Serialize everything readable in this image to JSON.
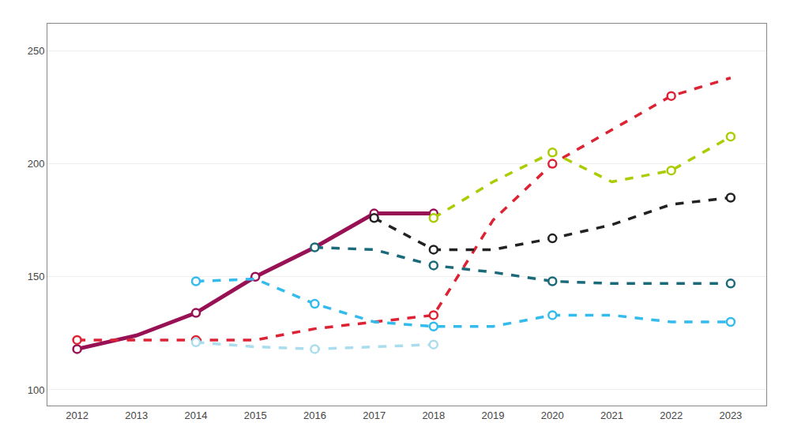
{
  "chart_data": {
    "type": "line",
    "xlim": [
      2011.5,
      2023.6
    ],
    "ylim": [
      93,
      262
    ],
    "xticks": [
      2012,
      2013,
      2014,
      2015,
      2016,
      2017,
      2018,
      2019,
      2020,
      2021,
      2022,
      2023
    ],
    "yticks": [
      100,
      150,
      200,
      250
    ],
    "grid": "y",
    "series": [
      {
        "color": "#991155",
        "line_style": "solid",
        "marker": "circle",
        "x": [
          2012,
          2013,
          2014,
          2015,
          2016,
          2017,
          2018
        ],
        "values": [
          118,
          124,
          134,
          150,
          163,
          178,
          178
        ],
        "marker_x": [
          2012,
          2014,
          2015,
          2017,
          2018
        ]
      },
      {
        "color": "#dd2233",
        "line_style": "dashed",
        "marker": "circle",
        "x": [
          2012,
          2013,
          2014,
          2015,
          2016,
          2017,
          2018,
          2019,
          2020,
          2021,
          2022,
          2023
        ],
        "values": [
          122,
          122,
          122,
          122,
          127,
          130,
          133,
          175,
          200,
          215,
          230,
          238
        ],
        "marker_x": [
          2012,
          2014,
          2018,
          2020,
          2022
        ]
      },
      {
        "color": "#33bbee",
        "line_style": "dashed",
        "marker": "circle",
        "x": [
          2014,
          2015,
          2016,
          2017,
          2018,
          2019,
          2020,
          2021,
          2022,
          2023
        ],
        "values": [
          148,
          149,
          138,
          130,
          128,
          128,
          133,
          133,
          130,
          130
        ],
        "marker_x": [
          2014,
          2016,
          2018,
          2020,
          2023
        ]
      },
      {
        "color": "#1b6a7a",
        "line_style": "dashed",
        "marker": "circle",
        "x": [
          2016,
          2017,
          2018,
          2019,
          2020,
          2021,
          2022,
          2023
        ],
        "values": [
          163,
          162,
          155,
          152,
          148,
          147,
          147,
          147
        ],
        "marker_x": [
          2016,
          2018,
          2020,
          2023
        ]
      },
      {
        "color": "#222222",
        "line_style": "dashed",
        "marker": "circle",
        "x": [
          2017,
          2018,
          2019,
          2020,
          2021,
          2022,
          2023
        ],
        "values": [
          176,
          162,
          162,
          167,
          173,
          182,
          185
        ],
        "marker_x": [
          2017,
          2018,
          2020,
          2023
        ]
      },
      {
        "color": "#aacc00",
        "line_style": "dashed",
        "marker": "circle",
        "x": [
          2018,
          2019,
          2020,
          2021,
          2022,
          2023
        ],
        "values": [
          176,
          192,
          205,
          192,
          197,
          212
        ],
        "marker_x": [
          2018,
          2020,
          2022,
          2023
        ]
      },
      {
        "color": "#aaddee",
        "line_style": "dashed",
        "marker": "circle",
        "x": [
          2014,
          2015,
          2016,
          2017,
          2018
        ],
        "values": [
          121,
          119,
          118,
          119,
          120
        ],
        "marker_x": [
          2014,
          2016,
          2018
        ]
      }
    ]
  }
}
